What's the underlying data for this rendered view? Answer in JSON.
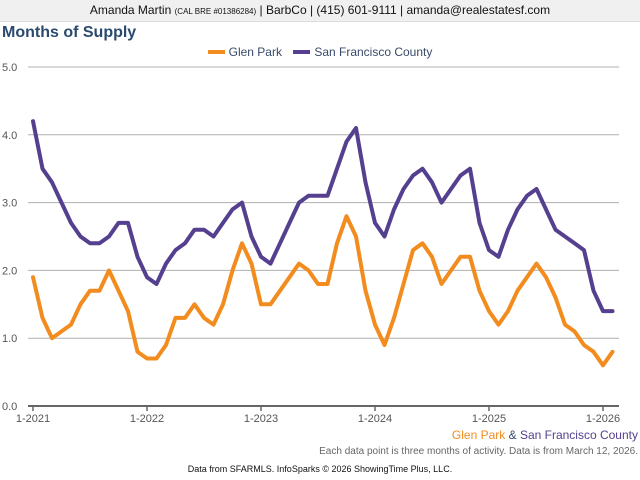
{
  "header": {
    "name": "Amanda Martin",
    "license": "(CAL BRE #01386284)",
    "rest": "| BarbCo | (415) 601-9111 | amanda@realestatesf.com"
  },
  "colors": {
    "glen_park": "#f28c1e",
    "sf_county": "#553f8f",
    "title": "#2a4a6e"
  },
  "legend": {
    "glen_park": "Glen Park",
    "sf_county": "San Francisco County"
  },
  "caption": {
    "glen_park": "Glen Park",
    "amp": " & ",
    "sf_county": "San Francisco County"
  },
  "note": "Each data point is three months of activity. Data is from March 12, 2026.",
  "footer": "Data from SFARMLS. InfoSparks © 2026 ShowingTime Plus, LLC.",
  "chart_data": {
    "type": "line",
    "title": "Months of Supply",
    "xlabel": "",
    "ylabel": "",
    "ylim": [
      0,
      5
    ],
    "yticks": [
      "0.0",
      "1.0",
      "2.0",
      "3.0",
      "4.0",
      "5.0"
    ],
    "xticks": [
      "1-2021",
      "1-2022",
      "1-2023",
      "1-2024",
      "1-2025",
      "1-2026"
    ],
    "grid": true,
    "legend_position": "top-center",
    "x_start": "1-2021",
    "x_frequency": "monthly",
    "series": [
      {
        "name": "Glen Park",
        "color": "#f28c1e",
        "values": [
          1.9,
          1.3,
          1.0,
          1.1,
          1.2,
          1.5,
          1.7,
          1.7,
          2.0,
          1.7,
          1.4,
          0.8,
          0.7,
          0.7,
          0.9,
          1.3,
          1.3,
          1.5,
          1.3,
          1.2,
          1.5,
          2.0,
          2.4,
          2.1,
          1.5,
          1.5,
          1.7,
          1.9,
          2.1,
          2.0,
          1.8,
          1.8,
          2.4,
          2.8,
          2.5,
          1.7,
          1.2,
          0.9,
          1.3,
          1.8,
          2.3,
          2.4,
          2.2,
          1.8,
          2.0,
          2.2,
          2.2,
          1.7,
          1.4,
          1.2,
          1.4,
          1.7,
          1.9,
          2.1,
          1.9,
          1.6,
          1.2,
          1.1,
          0.9,
          0.8,
          0.6,
          0.8
        ]
      },
      {
        "name": "San Francisco County",
        "color": "#553f8f",
        "values": [
          4.2,
          3.5,
          3.3,
          3.0,
          2.7,
          2.5,
          2.4,
          2.4,
          2.5,
          2.7,
          2.7,
          2.2,
          1.9,
          1.8,
          2.1,
          2.3,
          2.4,
          2.6,
          2.6,
          2.5,
          2.7,
          2.9,
          3.0,
          2.5,
          2.2,
          2.1,
          2.4,
          2.7,
          3.0,
          3.1,
          3.1,
          3.1,
          3.5,
          3.9,
          4.1,
          3.3,
          2.7,
          2.5,
          2.9,
          3.2,
          3.4,
          3.5,
          3.3,
          3.0,
          3.2,
          3.4,
          3.5,
          2.7,
          2.3,
          2.2,
          2.6,
          2.9,
          3.1,
          3.2,
          2.9,
          2.6,
          2.5,
          2.4,
          2.3,
          1.7,
          1.4,
          1.4
        ]
      }
    ]
  }
}
